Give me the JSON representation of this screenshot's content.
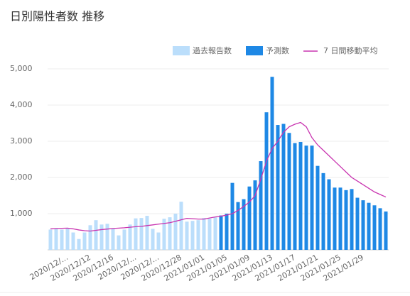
{
  "chart_data": {
    "type": "bar",
    "title": "日別陽性者数 推移",
    "categories": [
      null,
      null,
      null,
      "2020/12/...",
      null,
      null,
      null,
      "2020/12/12",
      null,
      null,
      null,
      "2020/12/16",
      null,
      null,
      null,
      "2020/12/...",
      null,
      null,
      null,
      "2020/12/...",
      null,
      null,
      null,
      "2020/12/28",
      null,
      null,
      null,
      "2021/01/01",
      null,
      null,
      null,
      "2021/01/05",
      null,
      null,
      null,
      "2021/01/09",
      null,
      null,
      null,
      "2021/01/13",
      null,
      null,
      null,
      "2021/01/17",
      null,
      null,
      null,
      "2021/01/21",
      null,
      null,
      null,
      "2021/01/25",
      null,
      null,
      null,
      "2021/01/29",
      null,
      null,
      null,
      null
    ],
    "series": [
      {
        "name": "過去報告数",
        "color": "#bbdefb",
        "values": [
          560,
          580,
          560,
          600,
          480,
          300,
          480,
          680,
          820,
          700,
          720,
          600,
          400,
          560,
          700,
          870,
          880,
          940,
          580,
          480,
          860,
          900,
          1000,
          1330,
          780,
          800,
          820,
          880,
          860,
          900,
          null,
          null,
          null,
          null,
          null,
          null,
          null,
          null,
          null,
          null,
          null,
          null,
          null,
          null,
          null,
          null,
          null,
          null,
          null,
          null,
          null,
          null,
          null,
          null,
          null,
          null,
          null,
          null,
          null,
          null
        ]
      },
      {
        "name": "予測数",
        "color": "#1e88e5",
        "values": [
          null,
          null,
          null,
          null,
          null,
          null,
          null,
          null,
          null,
          null,
          null,
          null,
          null,
          null,
          null,
          null,
          null,
          null,
          null,
          null,
          null,
          null,
          null,
          null,
          null,
          null,
          null,
          null,
          null,
          null,
          950,
          1000,
          1850,
          1320,
          1400,
          1750,
          1920,
          2450,
          3800,
          4780,
          3450,
          3480,
          3230,
          2950,
          2980,
          2880,
          2880,
          2320,
          2120,
          1950,
          1720,
          1720,
          1650,
          1680,
          1440,
          1370,
          1300,
          1230,
          1150,
          1060
        ]
      },
      {
        "name": "7 日間移動平均",
        "color": "#c935b0",
        "line": true,
        "values": [
          580,
          590,
          595,
          600,
          580,
          550,
          530,
          520,
          540,
          560,
          575,
          590,
          600,
          610,
          625,
          640,
          650,
          670,
          690,
          710,
          730,
          750,
          790,
          830,
          870,
          860,
          850,
          850,
          880,
          910,
          930,
          960,
          1000,
          1090,
          1200,
          1320,
          1500,
          1950,
          2450,
          2800,
          3000,
          3250,
          3400,
          3470,
          3520,
          3400,
          3100,
          2900,
          2750,
          2600,
          2450,
          2300,
          2150,
          2000,
          1900,
          1800,
          1700,
          1600,
          1530,
          1460
        ]
      }
    ],
    "ylim": [
      0,
      5000
    ],
    "yticks": [
      {
        "value": 1000,
        "label": "1,000"
      },
      {
        "value": 2000,
        "label": "2,000"
      },
      {
        "value": 3000,
        "label": "3,000"
      },
      {
        "value": 4000,
        "label": "4,000"
      },
      {
        "value": 5000,
        "label": "5,000"
      }
    ],
    "grid": true
  }
}
